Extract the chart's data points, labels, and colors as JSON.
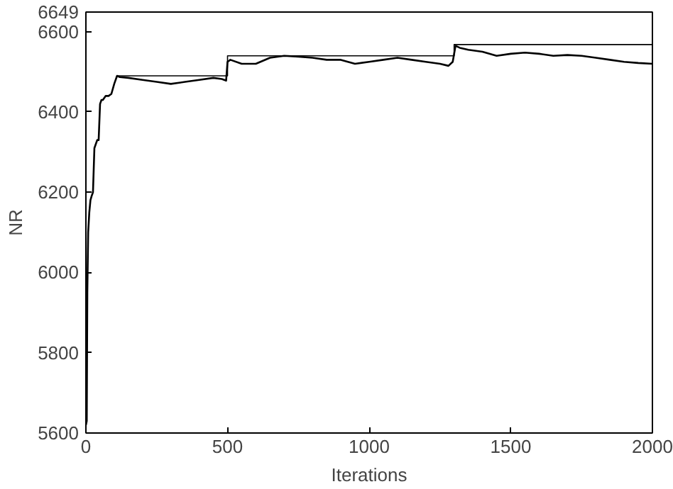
{
  "chart_data": {
    "type": "line",
    "xlabel": "Iterations",
    "ylabel": "NR",
    "xlim": [
      0,
      2000
    ],
    "ylim": [
      5600,
      6649
    ],
    "xticks": [
      0,
      500,
      1000,
      1500,
      2000
    ],
    "yticks": [
      5600,
      5800,
      6000,
      6200,
      6400,
      6600,
      6649
    ],
    "grid": false,
    "series": [
      {
        "color": "#000000",
        "x": [
          0,
          3,
          5,
          8,
          12,
          16,
          20,
          25,
          30,
          35,
          40,
          45,
          50,
          55,
          60,
          70,
          80,
          90,
          100,
          110,
          120,
          150,
          200,
          250,
          300,
          350,
          400,
          450,
          480,
          495,
          500,
          510,
          550,
          600,
          650,
          700,
          750,
          800,
          850,
          900,
          950,
          1000,
          1050,
          1100,
          1150,
          1200,
          1250,
          1280,
          1295,
          1305,
          1320,
          1350,
          1400,
          1450,
          1500,
          1550,
          1600,
          1650,
          1700,
          1750,
          1800,
          1850,
          1900,
          1950,
          2000
        ],
        "values": [
          5620,
          5630,
          5950,
          6100,
          6150,
          6180,
          6190,
          6200,
          6310,
          6320,
          6330,
          6330,
          6420,
          6430,
          6430,
          6440,
          6440,
          6445,
          6470,
          6490,
          6487,
          6485,
          6480,
          6475,
          6470,
          6475,
          6480,
          6485,
          6482,
          6478,
          6525,
          6530,
          6520,
          6520,
          6535,
          6540,
          6538,
          6535,
          6530,
          6530,
          6520,
          6525,
          6530,
          6535,
          6530,
          6525,
          6520,
          6515,
          6525,
          6565,
          6560,
          6555,
          6550,
          6540,
          6545,
          6548,
          6545,
          6540,
          6542,
          6540,
          6535,
          6530,
          6525,
          6522,
          6520
        ]
      },
      {
        "type": "step",
        "color": "#000000",
        "x": [
          110,
          500,
          1300,
          2000
        ],
        "values": [
          6490,
          6540,
          6568,
          6568
        ]
      }
    ]
  }
}
